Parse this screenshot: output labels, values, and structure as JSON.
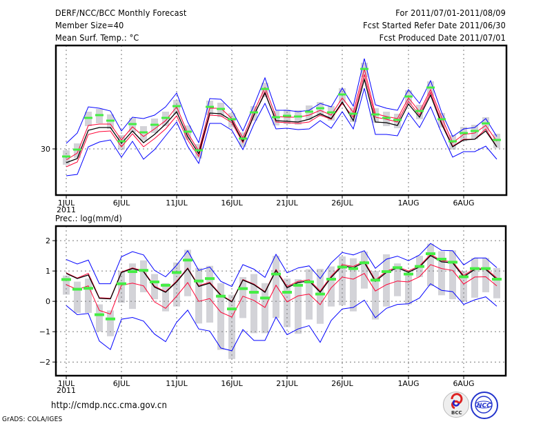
{
  "header": {
    "title": "DERF/NCC/BCC Monthly Forecast",
    "member_size": "Member Size=40",
    "variable": "Mean Surf. Temp.: °C",
    "period": "For 2011/07/01-2011/08/09",
    "started": "Fcst Started Refer Date 2011/06/30",
    "produced": "Fcst Produced Date 2011/07/01"
  },
  "footer": {
    "url": "http://cmdp.ncc.cma.gov.cn",
    "credit": "GrADS: COLA/IGES",
    "logo_bcc": "BCC",
    "logo_ncc": "NCC"
  },
  "colors": {
    "max_min": "#0000ff",
    "spread": "#ff0033",
    "mean": "#000000",
    "obs": "#44ee44",
    "box": "#d3d3d8"
  },
  "chart_data": [
    {
      "type": "line",
      "title": "Mean Surf. Temp.: °C",
      "x_ticks": [
        "1JUL",
        "6JUL",
        "11JUL",
        "16JUL",
        "21JUL",
        "26JUL",
        "1AUG",
        "6AUG"
      ],
      "x_tick_days": [
        1,
        6,
        11,
        16,
        21,
        26,
        32,
        37
      ],
      "year_label": "2011",
      "y_ticks": [
        30
      ],
      "y_tick_labels": [
        "30"
      ],
      "ylim": [
        26.65,
        37.5
      ],
      "days": 40,
      "series": [
        {
          "name": "max",
          "color": "#0000ff",
          "values": [
            30.4,
            31.15,
            33.05,
            32.95,
            32.75,
            31.3,
            32.3,
            32.2,
            32.45,
            33.05,
            34.05,
            31.95,
            30.45,
            33.65,
            33.6,
            32.8,
            31.3,
            33.15,
            35.15,
            32.8,
            32.8,
            32.7,
            32.8,
            33.3,
            33.05,
            34.4,
            33.1,
            36.55,
            33.2,
            32.95,
            32.8,
            34.3,
            33.3,
            34.95,
            32.65,
            30.9,
            31.45,
            31.55,
            32.2,
            30.9
          ]
        },
        {
          "name": "upper",
          "color": "#ff0033",
          "values": [
            29.2,
            29.7,
            31.7,
            31.8,
            31.8,
            30.65,
            31.6,
            30.9,
            31.45,
            32.05,
            33.05,
            31.15,
            29.85,
            32.95,
            32.95,
            32.2,
            30.8,
            32.7,
            34.45,
            32.35,
            32.3,
            32.3,
            32.45,
            32.8,
            32.45,
            33.7,
            32.65,
            35.8,
            32.55,
            32.35,
            32.2,
            33.7,
            32.7,
            34.3,
            32.3,
            30.45,
            31.05,
            31.15,
            31.7,
            30.55
          ]
        },
        {
          "name": "mean",
          "color": "#000000",
          "values": [
            29.0,
            29.3,
            31.35,
            31.55,
            31.55,
            30.4,
            31.3,
            30.45,
            31.05,
            31.8,
            32.7,
            30.9,
            29.65,
            32.6,
            32.55,
            32.05,
            30.55,
            32.45,
            34.05,
            32.05,
            32.0,
            31.95,
            32.15,
            32.55,
            32.2,
            33.4,
            32.05,
            35.05,
            31.95,
            31.9,
            31.7,
            33.25,
            32.3,
            33.9,
            31.8,
            30.15,
            30.65,
            30.7,
            31.3,
            30.15
          ]
        },
        {
          "name": "lower",
          "color": "#ff0033",
          "values": [
            28.7,
            29.05,
            31.05,
            31.25,
            31.3,
            30.15,
            31.1,
            30.15,
            30.75,
            31.45,
            32.4,
            30.65,
            29.45,
            32.45,
            32.4,
            31.9,
            30.45,
            32.4,
            34.15,
            31.95,
            31.9,
            31.85,
            31.95,
            32.45,
            32.15,
            33.3,
            32.3,
            35.4,
            32.3,
            32.15,
            31.95,
            33.45,
            32.45,
            34.1,
            31.95,
            30.2,
            30.7,
            30.7,
            31.45,
            30.15
          ]
        },
        {
          "name": "min",
          "color": "#0000ff",
          "values": [
            28.05,
            28.15,
            30.15,
            30.5,
            30.65,
            29.4,
            30.55,
            29.25,
            29.95,
            30.95,
            31.95,
            30.2,
            28.95,
            31.85,
            31.85,
            31.35,
            29.95,
            31.8,
            33.3,
            31.45,
            31.5,
            31.4,
            31.45,
            32.05,
            31.5,
            32.7,
            31.45,
            34.4,
            31.05,
            31.05,
            30.95,
            32.6,
            31.55,
            33.05,
            31.15,
            29.4,
            29.8,
            29.8,
            30.2,
            29.25
          ]
        },
        {
          "name": "observed",
          "color": "#44ee44",
          "values": [
            29.45,
            29.95,
            32.25,
            32.45,
            32.05,
            30.55,
            31.8,
            31.2,
            31.75,
            32.25,
            33.1,
            31.25,
            29.9,
            33.05,
            32.9,
            32.15,
            30.75,
            32.65,
            34.35,
            32.3,
            32.4,
            32.35,
            32.7,
            32.95,
            32.65,
            33.95,
            32.55,
            35.8,
            32.5,
            32.25,
            32.1,
            33.8,
            32.75,
            34.45,
            32.15,
            30.55,
            31.15,
            31.3,
            31.85,
            30.65
          ]
        }
      ]
    },
    {
      "type": "line",
      "title": "Prec.: log(mm/d)",
      "x_ticks": [
        "1JUL",
        "6JUL",
        "11JUL",
        "16JUL",
        "21JUL",
        "26JUL",
        "1AUG",
        "6AUG"
      ],
      "x_tick_days": [
        1,
        6,
        11,
        16,
        21,
        26,
        32,
        37
      ],
      "year_label": "2011",
      "y_ticks": [
        2,
        1,
        0,
        -1,
        -2
      ],
      "y_tick_labels": [
        "2",
        "1",
        "0",
        "−1",
        "−2"
      ],
      "ylim": [
        -2.45,
        2.48
      ],
      "days": 40,
      "series": [
        {
          "name": "max",
          "color": "#0000ff",
          "values": [
            1.38,
            1.23,
            1.36,
            0.58,
            0.58,
            1.47,
            1.64,
            1.53,
            1.02,
            0.81,
            1.19,
            1.67,
            1.02,
            1.13,
            0.66,
            0.49,
            1.21,
            1.06,
            0.79,
            1.55,
            0.94,
            1.1,
            1.17,
            0.75,
            1.27,
            1.61,
            1.53,
            1.67,
            1.09,
            1.39,
            1.49,
            1.34,
            1.53,
            1.91,
            1.68,
            1.67,
            1.2,
            1.43,
            1.43,
            1.11
          ]
        },
        {
          "name": "upper",
          "color": "#ff0033",
          "values": [
            0.94,
            0.77,
            0.92,
            0.12,
            0.1,
            0.97,
            1.1,
            1.0,
            0.5,
            0.32,
            0.67,
            1.1,
            0.52,
            0.63,
            0.22,
            0.0,
            0.72,
            0.57,
            0.32,
            1.05,
            0.49,
            0.66,
            0.71,
            0.34,
            0.83,
            1.21,
            1.15,
            1.32,
            0.7,
            0.99,
            1.14,
            1.0,
            1.17,
            1.55,
            1.34,
            1.31,
            0.85,
            1.09,
            1.09,
            0.77
          ]
        },
        {
          "name": "mean",
          "color": "#000000",
          "values": [
            0.92,
            0.75,
            0.87,
            0.1,
            0.08,
            0.95,
            1.08,
            0.98,
            0.47,
            0.3,
            0.64,
            1.08,
            0.49,
            0.6,
            0.2,
            -0.02,
            0.7,
            0.55,
            0.3,
            1.02,
            0.45,
            0.62,
            0.67,
            0.3,
            0.79,
            1.17,
            1.11,
            1.28,
            0.66,
            0.95,
            1.1,
            0.96,
            1.13,
            1.51,
            1.3,
            1.27,
            0.81,
            1.05,
            1.05,
            0.73
          ]
        },
        {
          "name": "lower",
          "color": "#ff0033",
          "values": [
            0.55,
            0.39,
            0.51,
            -0.3,
            -0.42,
            0.53,
            0.6,
            0.51,
            -0.02,
            -0.23,
            0.17,
            0.62,
            0.0,
            0.09,
            -0.36,
            -0.52,
            0.17,
            0.03,
            -0.2,
            0.53,
            -0.02,
            0.18,
            0.24,
            -0.11,
            0.45,
            0.8,
            0.73,
            0.92,
            0.34,
            0.55,
            0.67,
            0.64,
            0.81,
            1.21,
            1.08,
            1.02,
            0.57,
            0.8,
            0.81,
            0.51
          ]
        },
        {
          "name": "min",
          "color": "#0000ff",
          "values": [
            -0.14,
            -0.44,
            -0.4,
            -1.31,
            -1.59,
            -0.59,
            -0.53,
            -0.65,
            -1.08,
            -1.33,
            -0.69,
            -0.29,
            -0.91,
            -0.98,
            -1.54,
            -1.63,
            -0.93,
            -1.29,
            -1.29,
            -0.52,
            -1.1,
            -0.91,
            -0.8,
            -1.35,
            -0.63,
            -0.25,
            -0.2,
            0.04,
            -0.54,
            -0.23,
            -0.1,
            -0.08,
            0.11,
            0.58,
            0.36,
            0.32,
            -0.1,
            0.05,
            0.15,
            -0.16
          ]
        },
        {
          "name": "observed",
          "color": "#44ee44",
          "values": [
            0.72,
            0.4,
            0.43,
            -0.44,
            -0.58,
            0.58,
            0.98,
            1.02,
            0.64,
            0.53,
            0.95,
            1.36,
            0.67,
            0.75,
            0.17,
            -0.25,
            0.42,
            0.3,
            0.11,
            0.9,
            0.3,
            0.53,
            0.64,
            0.24,
            0.73,
            1.13,
            1.08,
            1.27,
            0.7,
            0.98,
            1.11,
            0.9,
            1.15,
            1.57,
            1.39,
            1.29,
            0.81,
            1.08,
            1.08,
            0.73
          ]
        }
      ],
      "member_range": {
        "low": [
          0.22,
          -0.38,
          -0.38,
          -1.0,
          -1.15,
          -0.05,
          -0.25,
          0.3,
          0.07,
          -0.33,
          -0.17,
          0.17,
          -0.73,
          -0.7,
          -1.6,
          -1.9,
          -0.55,
          -1.05,
          -1.05,
          -0.55,
          -0.85,
          -1.07,
          -0.6,
          -0.74,
          -0.17,
          -0.13,
          -0.33,
          0.42,
          -0.6,
          -0.17,
          0.17,
          -0.1,
          0.8,
          0.5,
          0.2,
          0.07,
          0.0,
          0.12,
          0.3,
          0.1
        ],
        "high": [
          0.85,
          0.65,
          0.75,
          -0.1,
          -0.3,
          1.0,
          1.25,
          1.35,
          0.9,
          0.6,
          1.28,
          1.7,
          1.1,
          1.17,
          0.6,
          0.22,
          0.8,
          0.9,
          0.6,
          1.5,
          0.75,
          0.73,
          1.06,
          1.07,
          1.15,
          1.48,
          1.42,
          1.64,
          1.0,
          1.55,
          1.25,
          0.95,
          1.5,
          1.9,
          1.65,
          1.68,
          1.0,
          1.43,
          1.43,
          1.1
        ]
      }
    }
  ]
}
